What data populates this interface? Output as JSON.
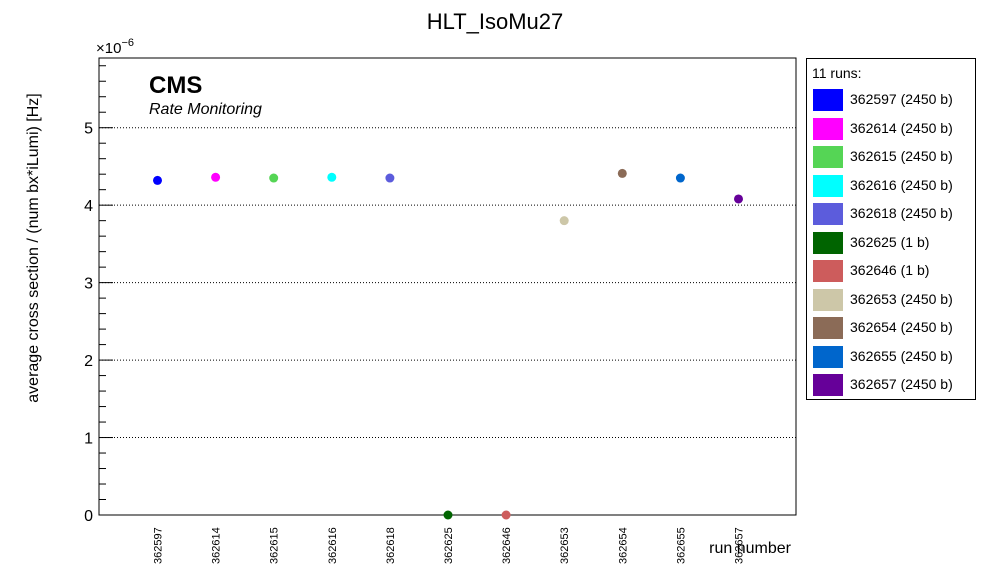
{
  "chart_data": {
    "type": "scatter",
    "title": "HLT_IsoMu27",
    "xlabel": "run number",
    "ylabel": "average cross section / (num bx*iLumi) [Hz]",
    "y_exponent_label": "×10",
    "y_exponent_power": "−6",
    "ylim": [
      0,
      5.9
    ],
    "yticks": [
      "0",
      "1",
      "2",
      "3",
      "4",
      "5"
    ],
    "grid": "horizontal dotted",
    "watermark": {
      "title": "CMS",
      "subtitle": "Rate Monitoring"
    },
    "categories": [
      "362597",
      "362614",
      "362615",
      "362616",
      "362618",
      "362625",
      "362646",
      "362653",
      "362654",
      "362655",
      "362657"
    ],
    "values": [
      4.32,
      4.36,
      4.35,
      4.36,
      4.35,
      0.0,
      0.0,
      3.8,
      4.41,
      4.35,
      4.08
    ],
    "colors": [
      "#0000ff",
      "#ff00ff",
      "#55d555",
      "#00ffff",
      "#5c5cdc",
      "#006400",
      "#cd5c5c",
      "#cdc7a8",
      "#8b6b57",
      "#0066cc",
      "#660099"
    ],
    "legend": {
      "header": "11 runs:",
      "entries": [
        {
          "label": "362597 (2450 b)",
          "color": "#0000ff"
        },
        {
          "label": "362614 (2450 b)",
          "color": "#ff00ff"
        },
        {
          "label": "362615 (2450 b)",
          "color": "#55d555"
        },
        {
          "label": "362616 (2450 b)",
          "color": "#00ffff"
        },
        {
          "label": "362618 (2450 b)",
          "color": "#5c5cdc"
        },
        {
          "label": "362625 (1 b)",
          "color": "#006400"
        },
        {
          "label": "362646 (1 b)",
          "color": "#cd5c5c"
        },
        {
          "label": "362653 (2450 b)",
          "color": "#cdc7a8"
        },
        {
          "label": "362654 (2450 b)",
          "color": "#8b6b57"
        },
        {
          "label": "362655 (2450 b)",
          "color": "#0066cc"
        },
        {
          "label": "362657 (2450 b)",
          "color": "#660099"
        }
      ]
    }
  }
}
